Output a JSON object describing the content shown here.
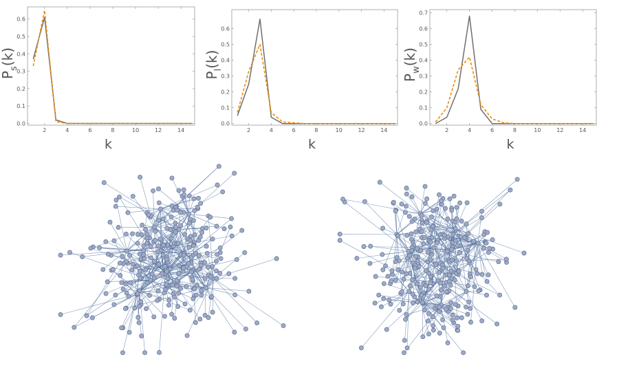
{
  "chart_data": [
    {
      "type": "line",
      "ylabel_main": "P",
      "ylabel_sub": "s",
      "ylabel_tail": "(k)",
      "xlabel": "k",
      "xlim": [
        0.5,
        15.2
      ],
      "ylim": [
        -0.01,
        0.67
      ],
      "xticks": [
        "2",
        "4",
        "6",
        "8",
        "10",
        "12",
        "14"
      ],
      "yticks": [
        "0.0",
        "0.1",
        "0.2",
        "0.3",
        "0.4",
        "0.5",
        "0.6"
      ],
      "x": [
        1,
        2,
        3,
        4,
        5,
        6,
        7,
        8,
        9,
        10,
        11,
        12,
        13,
        14,
        15
      ],
      "series": [
        {
          "style": "solid",
          "color": "#6e6e6e",
          "values": [
            0.37,
            0.61,
            0.02,
            0,
            0,
            0,
            0,
            0,
            0,
            0,
            0,
            0,
            0,
            0,
            0
          ]
        },
        {
          "style": "dashed",
          "color": "#f08a00",
          "values": [
            0.33,
            0.65,
            0.01,
            0,
            0,
            0,
            0,
            0,
            0,
            0,
            0,
            0,
            0,
            0,
            0
          ]
        }
      ]
    },
    {
      "type": "line",
      "ylabel_main": "P",
      "ylabel_sub": "l",
      "ylabel_tail": "(k)",
      "xlabel": "k",
      "xlim": [
        0.5,
        15.2
      ],
      "ylim": [
        -0.01,
        0.72
      ],
      "xticks": [
        "2",
        "4",
        "6",
        "8",
        "10",
        "12",
        "14"
      ],
      "yticks": [
        "0.0",
        "0.1",
        "0.2",
        "0.3",
        "0.4",
        "0.5",
        "0.6"
      ],
      "x": [
        1,
        2,
        3,
        4,
        5,
        6,
        7,
        8,
        9,
        10,
        11,
        12,
        13,
        14,
        15
      ],
      "series": [
        {
          "style": "solid",
          "color": "#6e6e6e",
          "values": [
            0.05,
            0.25,
            0.66,
            0.04,
            0,
            0,
            0,
            0,
            0,
            0,
            0,
            0,
            0,
            0,
            0
          ]
        },
        {
          "style": "dashed",
          "color": "#f08a00",
          "values": [
            0.07,
            0.33,
            0.5,
            0.07,
            0.01,
            0.005,
            0,
            0,
            0,
            0,
            0,
            0,
            0,
            0,
            0
          ]
        }
      ]
    },
    {
      "type": "line",
      "ylabel_main": "P",
      "ylabel_sub": "w",
      "ylabel_tail": "(k)",
      "xlabel": "k",
      "xlim": [
        0.5,
        15.2
      ],
      "ylim": [
        -0.01,
        0.72
      ],
      "xticks": [
        "2",
        "4",
        "6",
        "8",
        "10",
        "12",
        "14"
      ],
      "yticks": [
        "0.0",
        "0.1",
        "0.2",
        "0.3",
        "0.4",
        "0.5",
        "0.6",
        "0.7"
      ],
      "x": [
        1,
        2,
        3,
        4,
        5,
        6,
        7,
        8,
        9,
        10,
        11,
        12,
        13,
        14,
        15
      ],
      "series": [
        {
          "style": "solid",
          "color": "#6e6e6e",
          "values": [
            0,
            0.04,
            0.22,
            0.68,
            0.09,
            0,
            0,
            0,
            0,
            0,
            0,
            0,
            0,
            0,
            0
          ]
        },
        {
          "style": "dashed",
          "color": "#f08a00",
          "values": [
            0.01,
            0.1,
            0.34,
            0.42,
            0.12,
            0.03,
            0.005,
            0,
            0,
            0,
            0,
            0,
            0,
            0,
            0
          ]
        }
      ]
    }
  ],
  "networks": [
    {
      "nodes": 300,
      "seed": 11,
      "node_color": "#9eaac6",
      "edge_color": "#4d6e9e"
    },
    {
      "nodes": 300,
      "seed": 29,
      "node_color": "#9eaac6",
      "edge_color": "#4d6e9e"
    }
  ]
}
